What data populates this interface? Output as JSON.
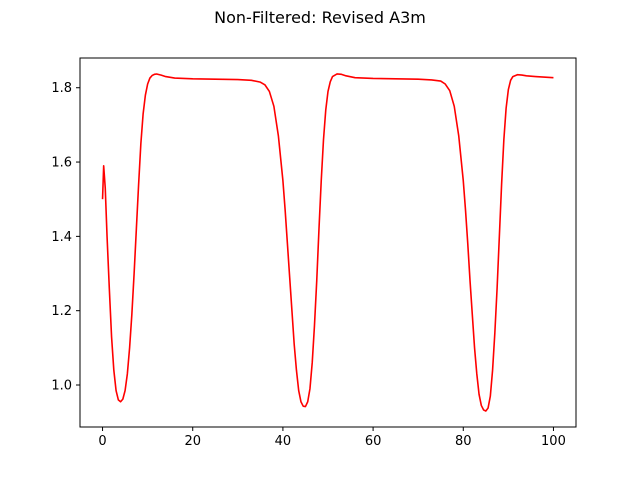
{
  "chart_data": {
    "type": "line",
    "title": "Non-Filtered: Revised A3m",
    "xlabel": "",
    "ylabel": "",
    "xlim": [
      -5,
      105
    ],
    "ylim": [
      0.887,
      1.88
    ],
    "x_ticks": [
      0,
      20,
      40,
      60,
      80,
      100
    ],
    "y_ticks": [
      1.0,
      1.2,
      1.4,
      1.6,
      1.8
    ],
    "x_tick_labels": [
      "0",
      "20",
      "40",
      "60",
      "80",
      "100"
    ],
    "y_tick_labels": [
      "1.0",
      "1.2",
      "1.4",
      "1.6",
      "1.8"
    ],
    "grid": false,
    "legend": "none",
    "series": [
      {
        "color": "#ff0000",
        "x": [
          0,
          0.25,
          0.6,
          1.0,
          1.5,
          2.0,
          2.5,
          3.0,
          3.5,
          4.0,
          4.5,
          5.0,
          5.5,
          6.0,
          6.5,
          7.0,
          7.5,
          8.0,
          8.5,
          9.0,
          9.5,
          10.0,
          10.5,
          11.0,
          11.5,
          12.0,
          13.0,
          14.0,
          16.0,
          20.0,
          25.0,
          30.0,
          33.0,
          35.0,
          36.0,
          37.0,
          38.0,
          39.0,
          40.0,
          40.5,
          41.0,
          41.5,
          42.0,
          42.5,
          43.0,
          43.5,
          44.0,
          44.5,
          45.0,
          45.5,
          46.0,
          46.5,
          47.0,
          47.5,
          48.0,
          48.5,
          49.0,
          49.5,
          50.0,
          50.5,
          51.0,
          52.0,
          53.0,
          54.0,
          56.0,
          60.0,
          65.0,
          70.0,
          73.0,
          75.0,
          76.0,
          77.0,
          78.0,
          79.0,
          80.0,
          80.5,
          81.0,
          81.5,
          82.0,
          82.5,
          83.0,
          83.5,
          84.0,
          84.5,
          85.0,
          85.5,
          86.0,
          86.5,
          87.0,
          87.5,
          88.0,
          88.5,
          89.0,
          89.5,
          90.0,
          90.5,
          91.0,
          92.0,
          93.0,
          94.0,
          96.0,
          100.0
        ],
        "y": [
          1.5,
          1.59,
          1.53,
          1.4,
          1.26,
          1.13,
          1.04,
          0.985,
          0.96,
          0.955,
          0.962,
          0.985,
          1.03,
          1.1,
          1.19,
          1.3,
          1.42,
          1.54,
          1.65,
          1.73,
          1.78,
          1.81,
          1.826,
          1.833,
          1.836,
          1.837,
          1.834,
          1.83,
          1.826,
          1.824,
          1.823,
          1.822,
          1.82,
          1.815,
          1.808,
          1.79,
          1.75,
          1.67,
          1.55,
          1.47,
          1.38,
          1.29,
          1.2,
          1.11,
          1.04,
          0.985,
          0.955,
          0.943,
          0.942,
          0.955,
          0.99,
          1.06,
          1.16,
          1.28,
          1.42,
          1.55,
          1.66,
          1.74,
          1.79,
          1.816,
          1.83,
          1.837,
          1.836,
          1.832,
          1.827,
          1.825,
          1.824,
          1.823,
          1.821,
          1.818,
          1.81,
          1.792,
          1.75,
          1.67,
          1.55,
          1.47,
          1.38,
          1.28,
          1.19,
          1.1,
          1.03,
          0.975,
          0.945,
          0.933,
          0.93,
          0.938,
          0.97,
          1.04,
          1.14,
          1.26,
          1.4,
          1.54,
          1.66,
          1.745,
          1.795,
          1.82,
          1.83,
          1.835,
          1.834,
          1.832,
          1.83,
          1.827
        ]
      }
    ]
  }
}
